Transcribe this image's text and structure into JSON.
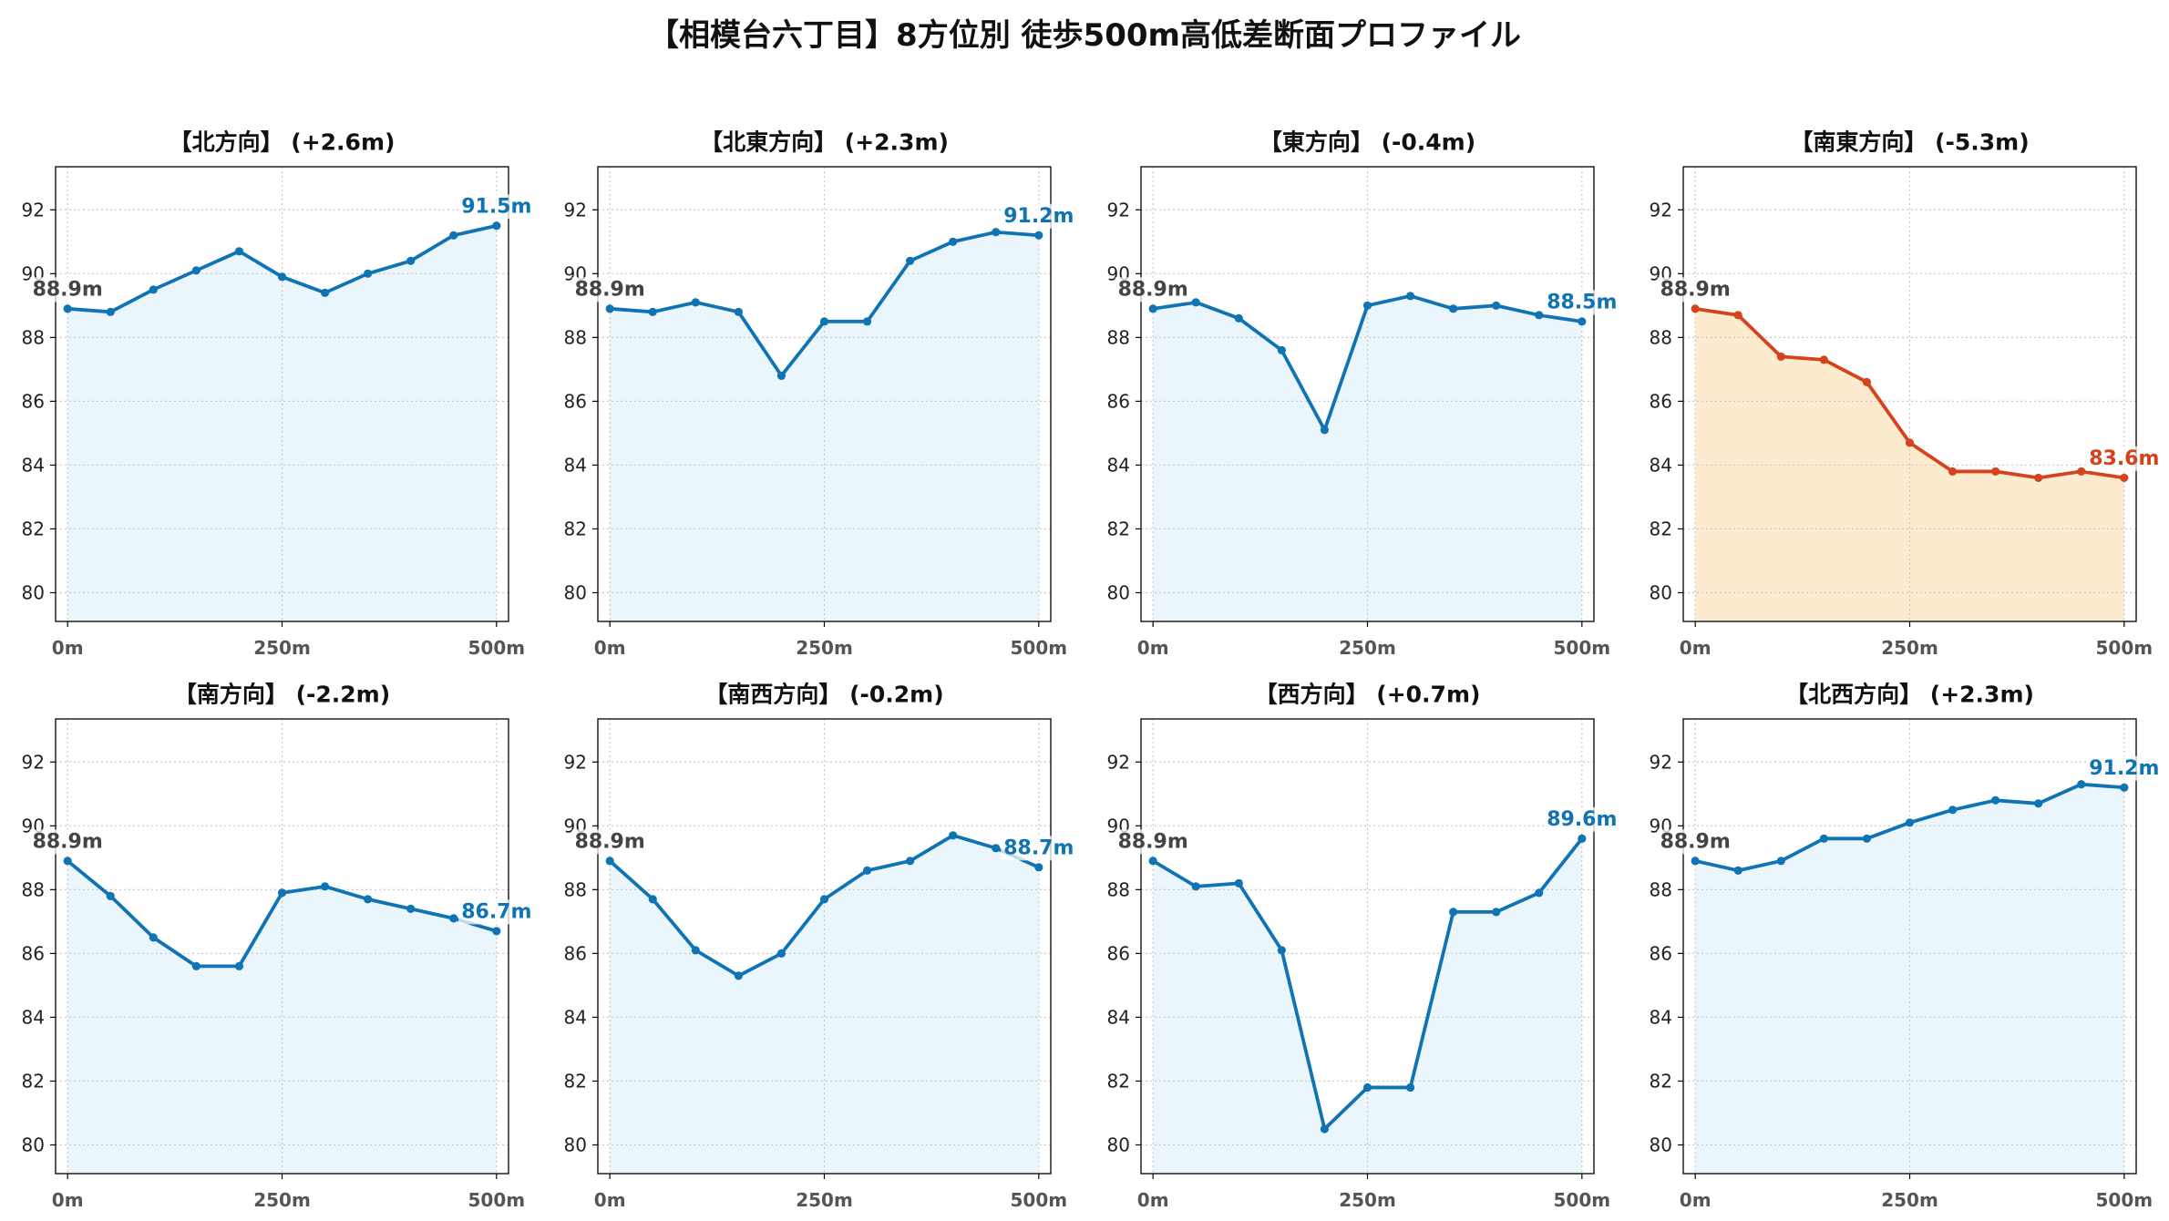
{
  "title": "【相模台六丁目】8方位別 徒歩500m高低差断面プロファイル",
  "chart_data": [
    {
      "type": "line",
      "title": "【北方向】 (+2.6m)",
      "x": [
        0,
        50,
        100,
        150,
        200,
        250,
        300,
        350,
        400,
        450,
        500
      ],
      "y": [
        88.9,
        88.8,
        89.5,
        90.1,
        90.7,
        89.9,
        89.4,
        90.0,
        90.4,
        91.2,
        91.5
      ],
      "xlim": [
        -14,
        514
      ],
      "ylim": [
        79.1,
        93.35
      ],
      "xticks": [
        0,
        250,
        500
      ],
      "xtick_labels": [
        "0m",
        "250m",
        "500m"
      ],
      "yticks": [
        80,
        82,
        84,
        86,
        88,
        90,
        92
      ],
      "grid": true,
      "start_label": "88.9m",
      "end_label": "91.5m",
      "line_color": "#0F73B4",
      "fill_color": "#EAF6FB"
    },
    {
      "type": "line",
      "title": "【北東方向】 (+2.3m)",
      "x": [
        0,
        50,
        100,
        150,
        200,
        250,
        300,
        350,
        400,
        450,
        500
      ],
      "y": [
        88.9,
        88.8,
        89.1,
        88.8,
        86.8,
        88.5,
        88.5,
        90.4,
        91.0,
        91.3,
        91.2
      ],
      "xlim": [
        -14,
        514
      ],
      "ylim": [
        79.1,
        93.35
      ],
      "xticks": [
        0,
        250,
        500
      ],
      "xtick_labels": [
        "0m",
        "250m",
        "500m"
      ],
      "yticks": [
        80,
        82,
        84,
        86,
        88,
        90,
        92
      ],
      "grid": true,
      "start_label": "88.9m",
      "end_label": "91.2m",
      "line_color": "#0F73B4",
      "fill_color": "#EAF6FB"
    },
    {
      "type": "line",
      "title": "【東方向】 (-0.4m)",
      "x": [
        0,
        50,
        100,
        150,
        200,
        250,
        300,
        350,
        400,
        450,
        500
      ],
      "y": [
        88.9,
        89.1,
        88.6,
        87.6,
        85.1,
        89.0,
        89.3,
        88.9,
        89.0,
        88.7,
        88.5
      ],
      "xlim": [
        -14,
        514
      ],
      "ylim": [
        79.1,
        93.35
      ],
      "xticks": [
        0,
        250,
        500
      ],
      "xtick_labels": [
        "0m",
        "250m",
        "500m"
      ],
      "yticks": [
        80,
        82,
        84,
        86,
        88,
        90,
        92
      ],
      "grid": true,
      "start_label": "88.9m",
      "end_label": "88.5m",
      "line_color": "#0F73B4",
      "fill_color": "#EAF6FB"
    },
    {
      "type": "line",
      "title": "【南東方向】 (-5.3m)",
      "x": [
        0,
        50,
        100,
        150,
        200,
        250,
        300,
        350,
        400,
        450,
        500
      ],
      "y": [
        88.9,
        88.7,
        87.4,
        87.3,
        86.6,
        84.7,
        83.8,
        83.8,
        83.6,
        83.8,
        83.6
      ],
      "xlim": [
        -14,
        514
      ],
      "ylim": [
        79.1,
        93.35
      ],
      "xticks": [
        0,
        250,
        500
      ],
      "xtick_labels": [
        "0m",
        "250m",
        "500m"
      ],
      "yticks": [
        80,
        82,
        84,
        86,
        88,
        90,
        92
      ],
      "grid": true,
      "start_label": "88.9m",
      "end_label": "83.6m",
      "line_color": "#D5431C",
      "fill_color": "#FDEBD0"
    },
    {
      "type": "line",
      "title": "【南方向】 (-2.2m)",
      "x": [
        0,
        50,
        100,
        150,
        200,
        250,
        300,
        350,
        400,
        450,
        500
      ],
      "y": [
        88.9,
        87.8,
        86.5,
        85.6,
        85.6,
        87.9,
        88.1,
        87.7,
        87.4,
        87.1,
        86.7
      ],
      "xlim": [
        -14,
        514
      ],
      "ylim": [
        79.1,
        93.35
      ],
      "xticks": [
        0,
        250,
        500
      ],
      "xtick_labels": [
        "0m",
        "250m",
        "500m"
      ],
      "yticks": [
        80,
        82,
        84,
        86,
        88,
        90,
        92
      ],
      "grid": true,
      "start_label": "88.9m",
      "end_label": "86.7m",
      "line_color": "#0F73B4",
      "fill_color": "#EAF6FB"
    },
    {
      "type": "line",
      "title": "【南西方向】 (-0.2m)",
      "x": [
        0,
        50,
        100,
        150,
        200,
        250,
        300,
        350,
        400,
        450,
        500
      ],
      "y": [
        88.9,
        87.7,
        86.1,
        85.3,
        86.0,
        87.7,
        88.6,
        88.9,
        89.7,
        89.3,
        88.7
      ],
      "xlim": [
        -14,
        514
      ],
      "ylim": [
        79.1,
        93.35
      ],
      "xticks": [
        0,
        250,
        500
      ],
      "xtick_labels": [
        "0m",
        "250m",
        "500m"
      ],
      "yticks": [
        80,
        82,
        84,
        86,
        88,
        90,
        92
      ],
      "grid": true,
      "start_label": "88.9m",
      "end_label": "88.7m",
      "line_color": "#0F73B4",
      "fill_color": "#EAF6FB"
    },
    {
      "type": "line",
      "title": "【西方向】 (+0.7m)",
      "x": [
        0,
        50,
        100,
        150,
        200,
        250,
        300,
        350,
        400,
        450,
        500
      ],
      "y": [
        88.9,
        88.1,
        88.2,
        86.1,
        80.5,
        81.8,
        81.8,
        87.3,
        87.3,
        87.9,
        89.6
      ],
      "xlim": [
        -14,
        514
      ],
      "ylim": [
        79.1,
        93.35
      ],
      "xticks": [
        0,
        250,
        500
      ],
      "xtick_labels": [
        "0m",
        "250m",
        "500m"
      ],
      "yticks": [
        80,
        82,
        84,
        86,
        88,
        90,
        92
      ],
      "grid": true,
      "start_label": "88.9m",
      "end_label": "89.6m",
      "line_color": "#0F73B4",
      "fill_color": "#EAF6FB"
    },
    {
      "type": "line",
      "title": "【北西方向】 (+2.3m)",
      "x": [
        0,
        50,
        100,
        150,
        200,
        250,
        300,
        350,
        400,
        450,
        500
      ],
      "y": [
        88.9,
        88.6,
        88.9,
        89.6,
        89.6,
        90.1,
        90.5,
        90.8,
        90.7,
        91.3,
        91.2
      ],
      "xlim": [
        -14,
        514
      ],
      "ylim": [
        79.1,
        93.35
      ],
      "xticks": [
        0,
        250,
        500
      ],
      "xtick_labels": [
        "0m",
        "250m",
        "500m"
      ],
      "yticks": [
        80,
        82,
        84,
        86,
        88,
        90,
        92
      ],
      "grid": true,
      "start_label": "88.9m",
      "end_label": "91.2m",
      "line_color": "#0F73B4",
      "fill_color": "#EAF6FB"
    }
  ]
}
